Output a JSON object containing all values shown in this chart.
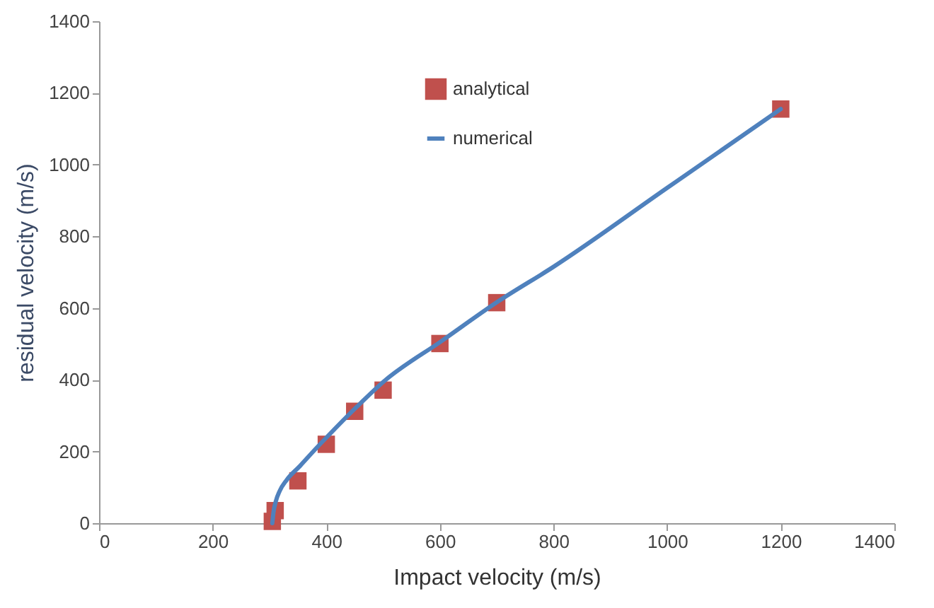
{
  "chart_data": {
    "type": "scatter",
    "xlabel": "Impact velocity (m/s)",
    "ylabel": "residual velocity (m/s)",
    "xlim": [
      0,
      1400
    ],
    "xticks": [
      0,
      200,
      400,
      600,
      800,
      1000,
      1200,
      1400
    ],
    "ylim": [
      0,
      1400
    ],
    "yticks": [
      0,
      200,
      400,
      600,
      800,
      1000,
      1200,
      1400
    ],
    "grid": false,
    "legend": "top",
    "series": [
      {
        "name": "analytical",
        "marker": "square",
        "color": "#c0504d",
        "x": [
          305,
          310,
          350,
          400,
          450,
          500,
          600,
          700,
          1200
        ],
        "values": [
          5,
          35,
          118,
          220,
          312,
          371,
          501,
          615,
          1155
        ]
      },
      {
        "name": "numerical",
        "type": "line",
        "color": "#4f81bd",
        "x": [
          305,
          307,
          311,
          318,
          330,
          354,
          380,
          401,
          454,
          501,
          603,
          703,
          800,
          1000,
          1200
        ],
        "values": [
          0,
          30,
          60,
          90,
          120,
          160,
          205,
          240,
          325,
          395,
          508,
          619,
          715,
          935,
          1155
        ]
      }
    ]
  }
}
